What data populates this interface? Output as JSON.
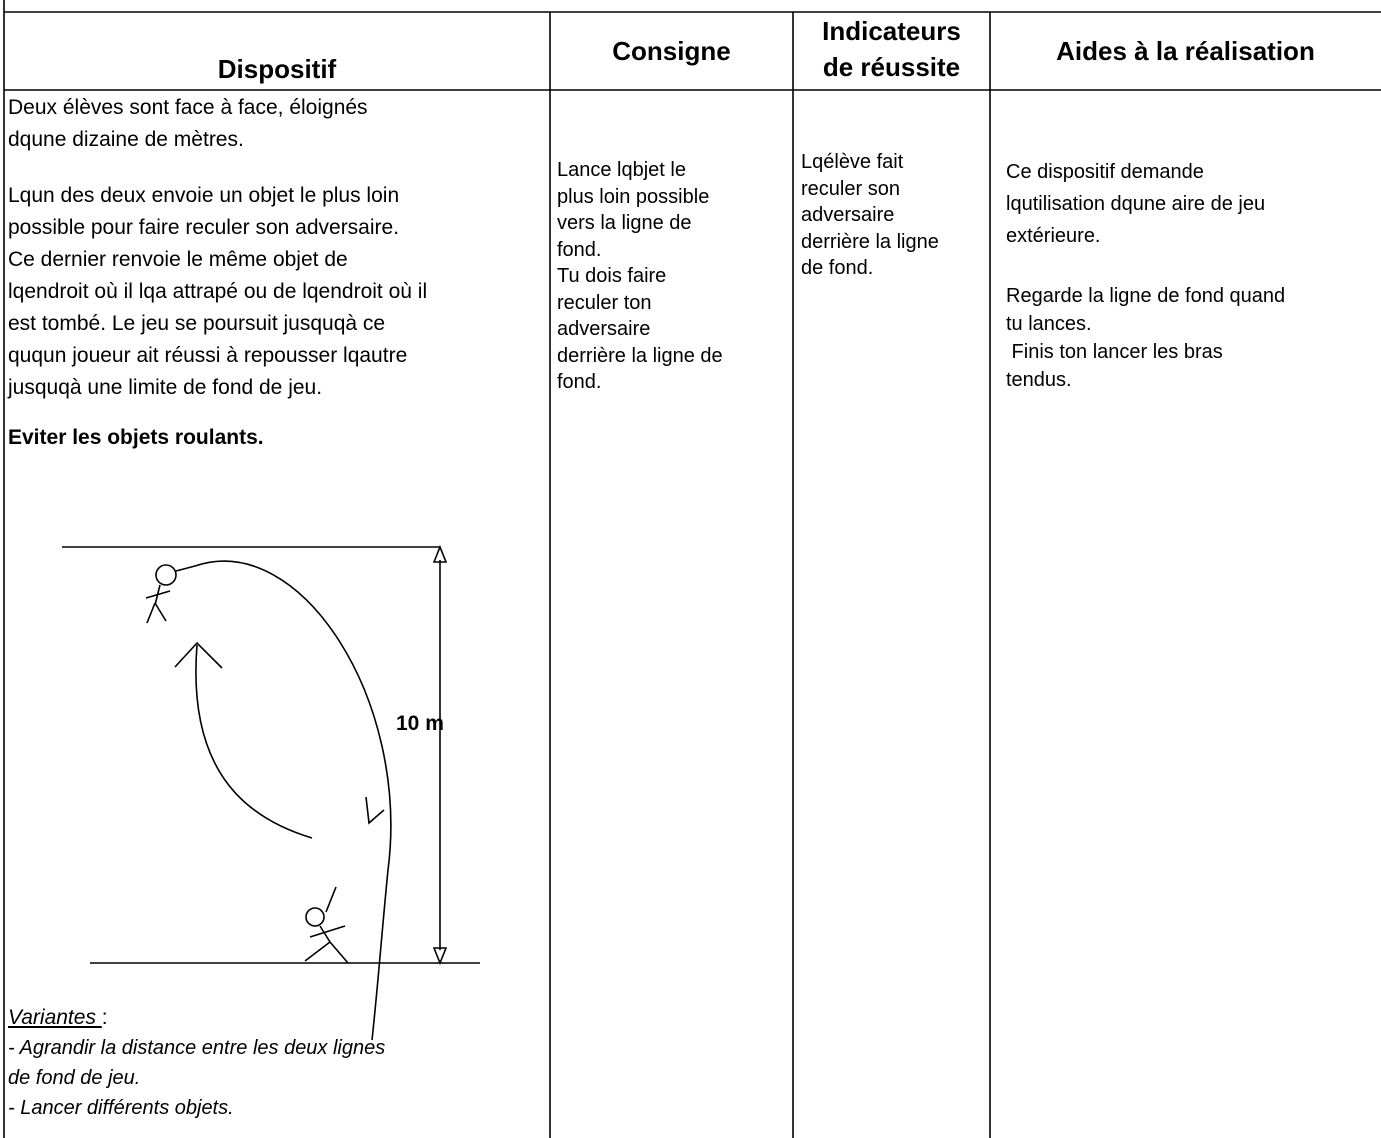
{
  "header": {
    "dispositif": "Dispositif",
    "consigne": "Consigne",
    "indicateurs": [
      "Indicateurs",
      "de réussite"
    ],
    "aides": "Aides à la réalisation"
  },
  "dispositif": {
    "intro": [
      "Deux élèves sont face à face, éloignés",
      "dqune dizaine de mètres."
    ],
    "rules": [
      "Lqun des deux envoie un objet le plus loin",
      "possible pour faire reculer son adversaire.",
      "Ce dernier renvoie le même objet de",
      "lqendroit où il lqa attrapé ou de lqendroit où il",
      "est tombé. Le jeu se poursuit jusquqà ce",
      "ququn joueur ait réussi à repousser lqautre",
      "jusquqà une limite de fond de jeu."
    ],
    "warning": "Eviter les objets roulants.",
    "diagram_label": "10 m",
    "variantes_title": "Variantes ",
    "variantes_colon": ":",
    "variantes": [
      "- Agrandir la distance entre les deux lignes",
      "de fond de jeu.",
      "- Lancer différents objets."
    ]
  },
  "consigne": [
    "Lance lqbjet le",
    "plus loin possible",
    "vers la ligne de",
    "fond.",
    "Tu dois faire",
    "reculer ton",
    "adversaire",
    "derrière la ligne de",
    "fond."
  ],
  "indicateurs": [
    "Lqélève fait",
    "reculer son",
    "adversaire",
    "derrière la ligne",
    "de fond."
  ],
  "aides": [
    "Ce dispositif demande",
    "lqutilisation dqune aire de jeu",
    "extérieure.",
    "Regarde la ligne de fond quand",
    "tu lances.",
    " Finis ton lancer les bras",
    "tendus."
  ]
}
